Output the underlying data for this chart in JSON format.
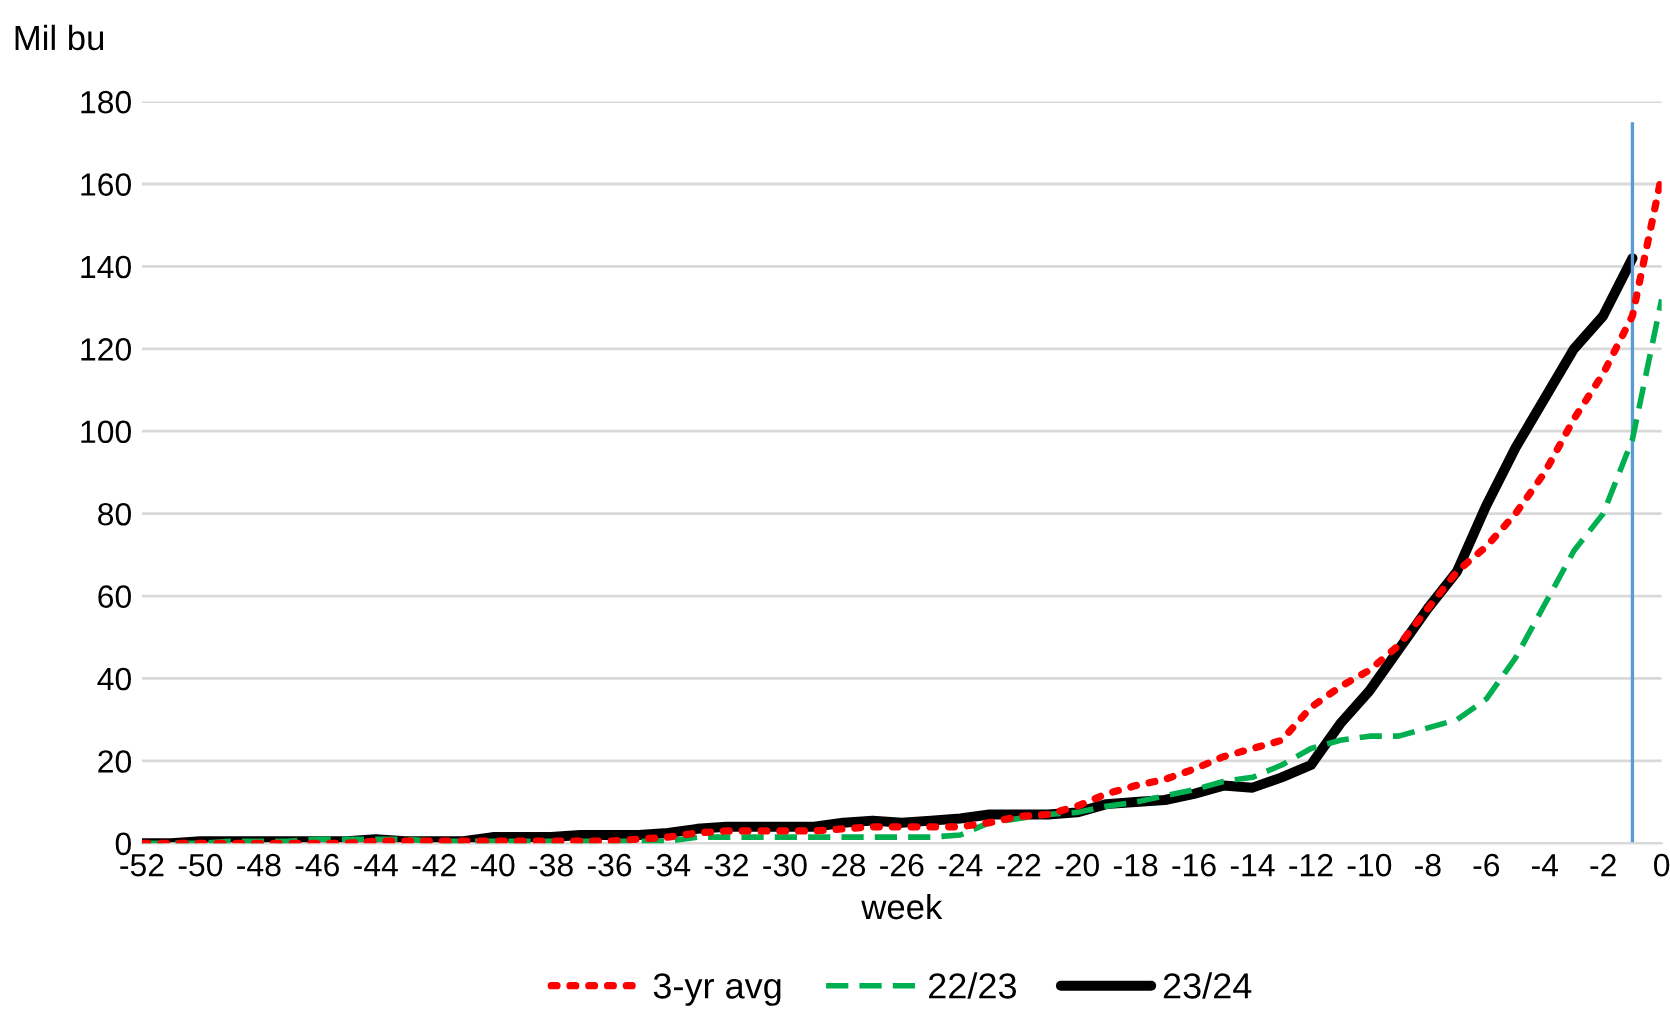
{
  "chart_data": {
    "type": "line",
    "xlabel": "week",
    "ylabel": "Mil bu",
    "x": [
      -52,
      -51,
      -50,
      -49,
      -48,
      -47,
      -46,
      -45,
      -44,
      -43,
      -42,
      -41,
      -40,
      -39,
      -38,
      -37,
      -36,
      -35,
      -34,
      -33,
      -32,
      -31,
      -30,
      -29,
      -28,
      -27,
      -26,
      -25,
      -24,
      -23,
      -22,
      -21,
      -20,
      -19,
      -18,
      -17,
      -16,
      -15,
      -14,
      -13,
      -12,
      -11,
      -10,
      -9,
      -8,
      -7,
      -6,
      -5,
      -4,
      -3,
      -2,
      -1,
      0
    ],
    "series": [
      {
        "name": "3-yr avg",
        "color": "#ff0000",
        "line_style": "dotted",
        "values": [
          0,
          0,
          0,
          0,
          0,
          0,
          0,
          0,
          0.5,
          0.5,
          0.5,
          0.5,
          0.5,
          0.5,
          0.5,
          0.5,
          0.5,
          1,
          1.5,
          2.5,
          3,
          3,
          3,
          3,
          3.5,
          4,
          4,
          4,
          4,
          5,
          6.5,
          7,
          9,
          12,
          14,
          15.5,
          18,
          21,
          23,
          25,
          33,
          38,
          42,
          48,
          57,
          66,
          72,
          80,
          90,
          103,
          114,
          128,
          162
        ]
      },
      {
        "name": "22/23",
        "color": "#00b050",
        "line_style": "dashed",
        "values": [
          0,
          0,
          0,
          0.5,
          0.5,
          0.5,
          1,
          1,
          1,
          1,
          0.5,
          0.5,
          0.5,
          0.5,
          0.5,
          0.5,
          0.5,
          0.5,
          0.5,
          1.5,
          1.5,
          1.5,
          1.5,
          1.5,
          1.5,
          1.5,
          1.5,
          1.5,
          2,
          5,
          6,
          7,
          7.5,
          9,
          10,
          11.5,
          13,
          15,
          16,
          19,
          23,
          25,
          26,
          26,
          28,
          30,
          35,
          45,
          58,
          71,
          80,
          98,
          132
        ]
      },
      {
        "name": "23/24",
        "color": "#000000",
        "line_style": "solid",
        "values": [
          0,
          0,
          0.5,
          0.5,
          0.5,
          0.5,
          0.5,
          0.5,
          1,
          0.5,
          0.5,
          0.5,
          1.5,
          1.5,
          1.5,
          2,
          2,
          2,
          2.5,
          3.5,
          4,
          4,
          4,
          4,
          5,
          5.5,
          5,
          5.5,
          6,
          7,
          7,
          7,
          7.5,
          9.5,
          10,
          10.5,
          12,
          14,
          13.5,
          16,
          19,
          29,
          37,
          47,
          57,
          66,
          82,
          96,
          108,
          120,
          128,
          142,
          null
        ]
      }
    ],
    "xlim": [
      -52,
      0
    ],
    "xticks": [
      -52,
      -50,
      -48,
      -46,
      -44,
      -42,
      -40,
      -38,
      -36,
      -34,
      -32,
      -30,
      -28,
      -26,
      -24,
      -22,
      -20,
      -18,
      -16,
      -14,
      -12,
      -10,
      -8,
      -6,
      -4,
      -2,
      0
    ],
    "ylim": [
      0,
      180
    ],
    "yticks": [
      0,
      20,
      40,
      60,
      80,
      100,
      120,
      140,
      160,
      180
    ],
    "grid": "y",
    "legend": "bottom",
    "ref_lines": [
      {
        "axis": "x",
        "value": -1,
        "color": "#5b9bd5"
      }
    ]
  }
}
